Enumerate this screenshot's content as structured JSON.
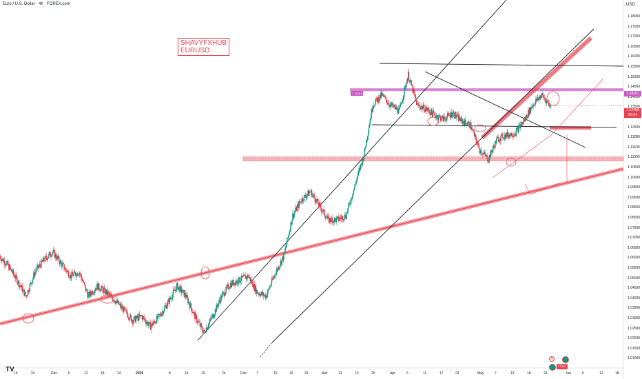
{
  "header": {
    "title": "Euro / U.S. Dollar · 4h · FOREX.com",
    "currency": "USD"
  },
  "watermark": {
    "line1": "SHAVYFXHUB",
    "line2": "EURUSD"
  },
  "price_axis": {
    "ticks": [
      "1.18000",
      "1.17500",
      "1.17000",
      "1.16500",
      "1.16000",
      "1.15500",
      "1.15000",
      "1.14500",
      "1.14000",
      "1.13500",
      "1.13000",
      "1.12500",
      "1.12000",
      "1.11500",
      "1.11000",
      "1.10500",
      "1.10000",
      "1.09500",
      "1.09000",
      "1.08500",
      "1.08000",
      "1.07500",
      "1.07000",
      "1.06500",
      "1.06000",
      "1.05500",
      "1.05000",
      "1.04500",
      "1.04000",
      "1.03500",
      "1.03000",
      "1.02500",
      "1.02000",
      "1.01500",
      "1.01000"
    ],
    "resistance_tag": "1.14261",
    "last_price": "1.13458",
    "countdown": "55:54"
  },
  "time_axis": {
    "ticks": [
      {
        "label": "19",
        "bold": false
      },
      {
        "label": "24",
        "bold": false
      },
      {
        "label": "Dec",
        "bold": false
      },
      {
        "label": "6",
        "bold": false
      },
      {
        "label": "12",
        "bold": false
      },
      {
        "label": "18",
        "bold": false
      },
      {
        "label": "24",
        "bold": false
      },
      {
        "label": "2025",
        "bold": true
      },
      {
        "label": "8",
        "bold": false
      },
      {
        "label": "14",
        "bold": false
      },
      {
        "label": "19",
        "bold": false
      },
      {
        "label": "24",
        "bold": false
      },
      {
        "label": "Feb",
        "bold": false
      },
      {
        "label": "7",
        "bold": false
      },
      {
        "label": "13",
        "bold": false
      },
      {
        "label": "19",
        "bold": false
      },
      {
        "label": "25",
        "bold": false
      },
      {
        "label": "Mar",
        "bold": false
      },
      {
        "label": "13",
        "bold": false
      },
      {
        "label": "19",
        "bold": false
      },
      {
        "label": "25",
        "bold": false
      },
      {
        "label": "Apr",
        "bold": false
      },
      {
        "label": "6",
        "bold": false
      },
      {
        "label": "11",
        "bold": false
      },
      {
        "label": "17",
        "bold": false
      },
      {
        "label": "23",
        "bold": false
      },
      {
        "label": "May",
        "bold": false
      },
      {
        "label": "7",
        "bold": false
      },
      {
        "label": "13",
        "bold": false
      },
      {
        "label": "18",
        "bold": false
      },
      {
        "label": "23",
        "bold": false
      },
      {
        "label": "Jun",
        "bold": false
      },
      {
        "label": "6",
        "bold": false
      },
      {
        "label": "12",
        "bold": false
      },
      {
        "label": "18",
        "bold": false
      }
    ]
  },
  "zone_pill": "1.14261",
  "footer": {
    "alert_icon": "A",
    "badge": "0.52"
  },
  "colors": {
    "bull": "#089981",
    "bear": "#f23645",
    "trend": "#e8424e",
    "magenta": "#c95cc3",
    "line": "#131722"
  },
  "chart_data": {
    "type": "line",
    "title": "Euro / U.S. Dollar · 4h · FOREX.com",
    "x_range": [
      "Nov 2024",
      "Jun 2025"
    ],
    "ylim": [
      1.01,
      1.18
    ],
    "series": [
      {
        "values": [
          1.06,
          1.055,
          1.048,
          1.04,
          1.052,
          1.058,
          1.062,
          1.056,
          1.05,
          1.052,
          1.04,
          1.045,
          1.042,
          1.038,
          1.033,
          1.028,
          1.03,
          1.025,
          1.03,
          1.037,
          1.045,
          1.04,
          1.03,
          1.022,
          1.03,
          1.04,
          1.046,
          1.048,
          1.05,
          1.042,
          1.04,
          1.051,
          1.06,
          1.08,
          1.088,
          1.092,
          1.085,
          1.078,
          1.078,
          1.08,
          1.095,
          1.11,
          1.135,
          1.14,
          1.135,
          1.132,
          1.15,
          1.135,
          1.133,
          1.13,
          1.128,
          1.131,
          1.127,
          1.125,
          1.113,
          1.108,
          1.118,
          1.12,
          1.121,
          1.127,
          1.135,
          1.14,
          1.1346
        ]
      }
    ],
    "levels": {
      "resistance_zone": 1.14261,
      "upper_line": 1.1565,
      "mid_line": 1.1275,
      "support_zone": 1.1082
    }
  }
}
